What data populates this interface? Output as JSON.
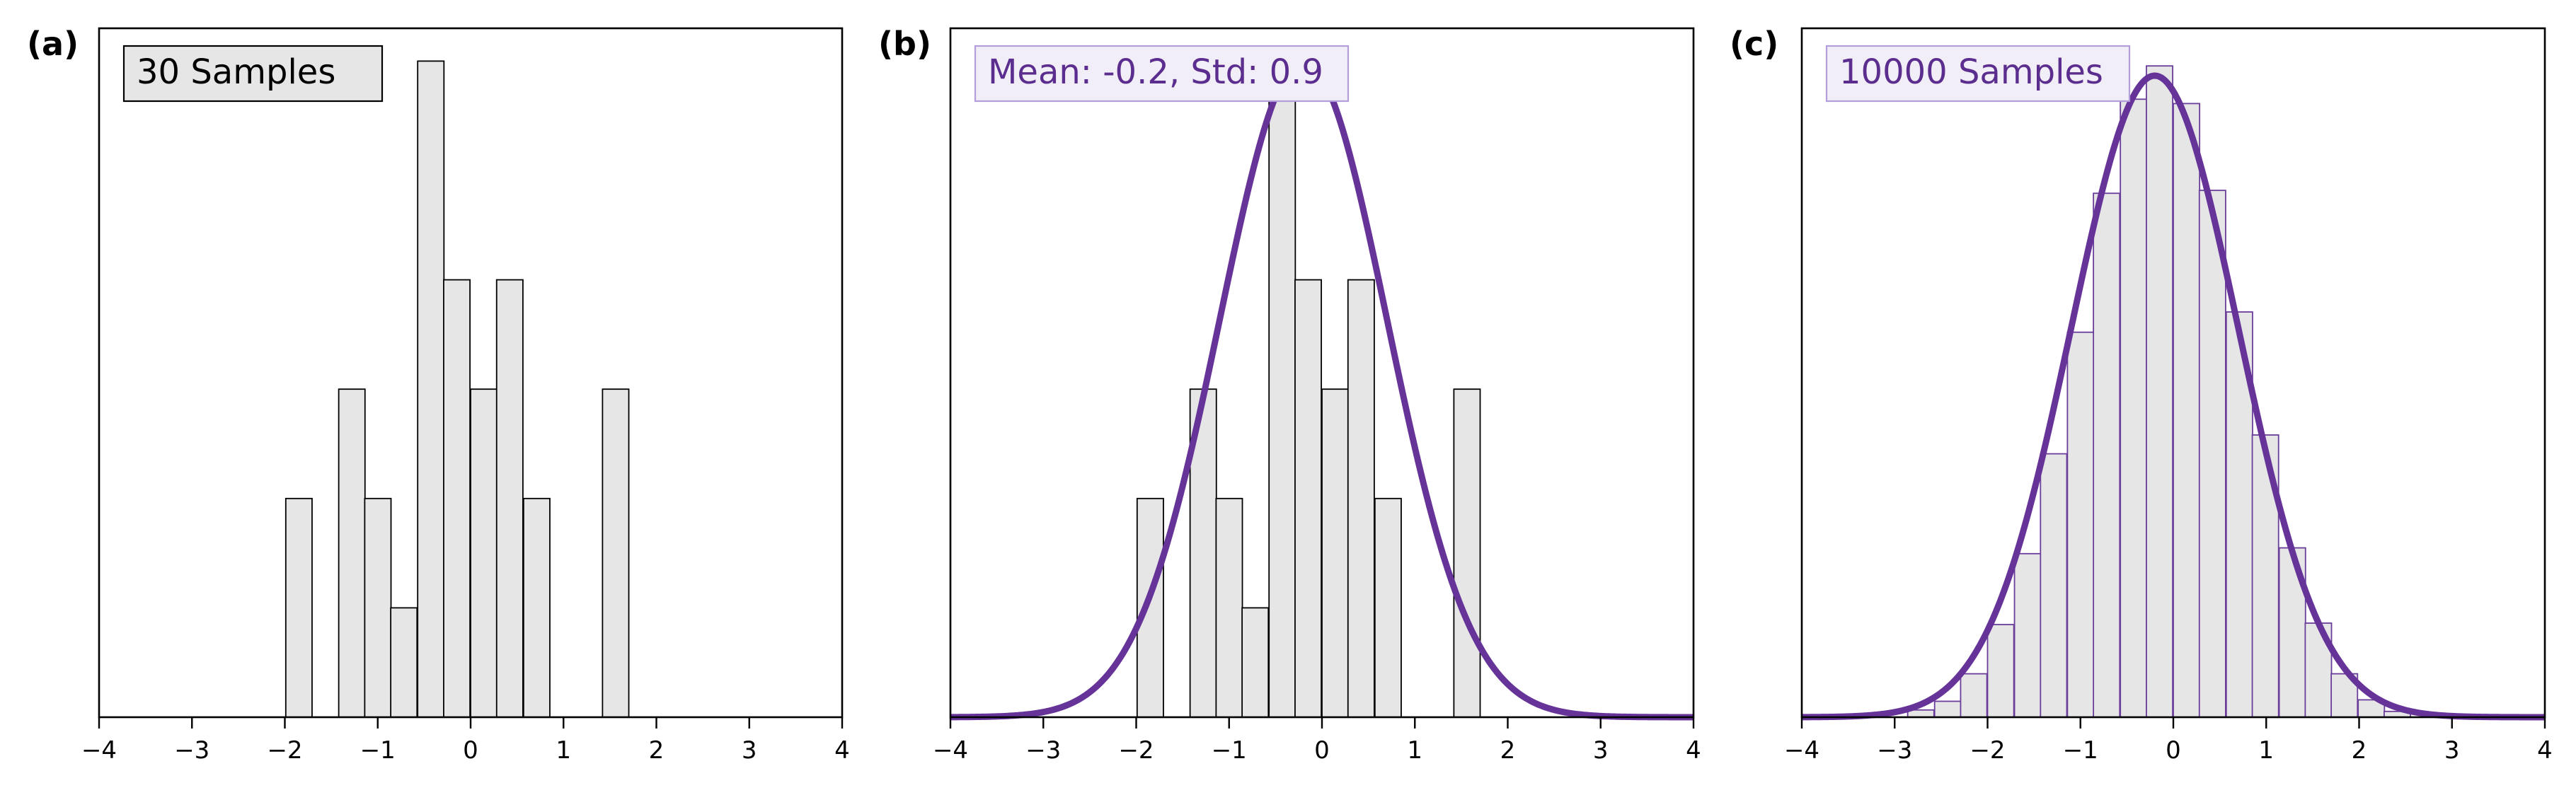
{
  "panels": [
    {
      "label": "(a)",
      "box_text": "30 Samples"
    },
    {
      "label": "(b)",
      "box_text": "Mean: -0.2, Std: 0.9"
    },
    {
      "label": "(c)",
      "box_text": "10000 Samples"
    }
  ],
  "colors": {
    "bar_fill": "#e6e6e6",
    "bar_edge_dark": "#000000",
    "bar_edge_purple": "#6a3d9a",
    "curve": "#663399",
    "box_fill_a": "#e6e6e6",
    "box_fill_bc": "#f2eef7",
    "box_edge_bc": "#b39ddb",
    "box_text_a": "#000000",
    "box_text_bc": "#5b2d8e"
  },
  "chart_data": [
    {
      "type": "bar",
      "title": "",
      "xlabel": "",
      "ylabel": "",
      "xlim": [
        -4,
        4
      ],
      "ylim": [
        0,
        6.3
      ],
      "xticks": [
        -4,
        -3,
        -2,
        -1,
        0,
        1,
        2,
        3,
        4
      ],
      "xtick_labels": [
        "−4",
        "−3",
        "−2",
        "−1",
        "0",
        "1",
        "2",
        "3",
        "4"
      ],
      "bin_width": 0.283,
      "bin_left": [
        -1.99,
        -1.42,
        -1.14,
        -0.86,
        -0.57,
        -0.29,
        0.0,
        0.28,
        0.57,
        1.42
      ],
      "counts": [
        2,
        3,
        2,
        1,
        6,
        4,
        3,
        4,
        2,
        3
      ],
      "grid": false
    },
    {
      "type": "bar",
      "title": "",
      "xlabel": "",
      "ylabel": "",
      "xlim": [
        -4,
        4
      ],
      "ylim": [
        0,
        6.3
      ],
      "xticks": [
        -4,
        -3,
        -2,
        -1,
        0,
        1,
        2,
        3,
        4
      ],
      "xtick_labels": [
        "−4",
        "−3",
        "−2",
        "−1",
        "0",
        "1",
        "2",
        "3",
        "4"
      ],
      "bin_width": 0.283,
      "bin_left": [
        -1.99,
        -1.42,
        -1.14,
        -0.86,
        -0.57,
        -0.29,
        0.0,
        0.28,
        0.57,
        1.42
      ],
      "counts": [
        2,
        3,
        2,
        1,
        6,
        4,
        3,
        4,
        2,
        3
      ],
      "curve": {
        "kind": "normal_pdf_scaled",
        "mean": -0.2,
        "std": 0.9,
        "peak": 6.0
      },
      "grid": false
    },
    {
      "type": "bar",
      "title": "",
      "xlabel": "",
      "ylabel": "",
      "xlim": [
        -4,
        4
      ],
      "ylim": [
        0,
        0.476
      ],
      "xticks": [
        -4,
        -3,
        -2,
        -1,
        0,
        1,
        2,
        3,
        4
      ],
      "xtick_labels": [
        "−4",
        "−3",
        "−2",
        "−1",
        "0",
        "1",
        "2",
        "3",
        "4"
      ],
      "bin_width": 0.283,
      "bin_left": [
        -2.86,
        -2.57,
        -2.29,
        -2.0,
        -1.71,
        -1.43,
        -1.14,
        -0.86,
        -0.57,
        -0.29,
        0.0,
        0.28,
        0.57,
        0.85,
        1.14,
        1.42,
        1.7,
        1.99,
        2.27
      ],
      "values": [
        0.005,
        0.011,
        0.03,
        0.064,
        0.113,
        0.182,
        0.266,
        0.362,
        0.427,
        0.45,
        0.424,
        0.364,
        0.28,
        0.195,
        0.117,
        0.065,
        0.03,
        0.012,
        0.004
      ],
      "curve": {
        "kind": "normal_pdf",
        "mean": -0.2,
        "std": 0.9
      },
      "grid": false
    }
  ]
}
